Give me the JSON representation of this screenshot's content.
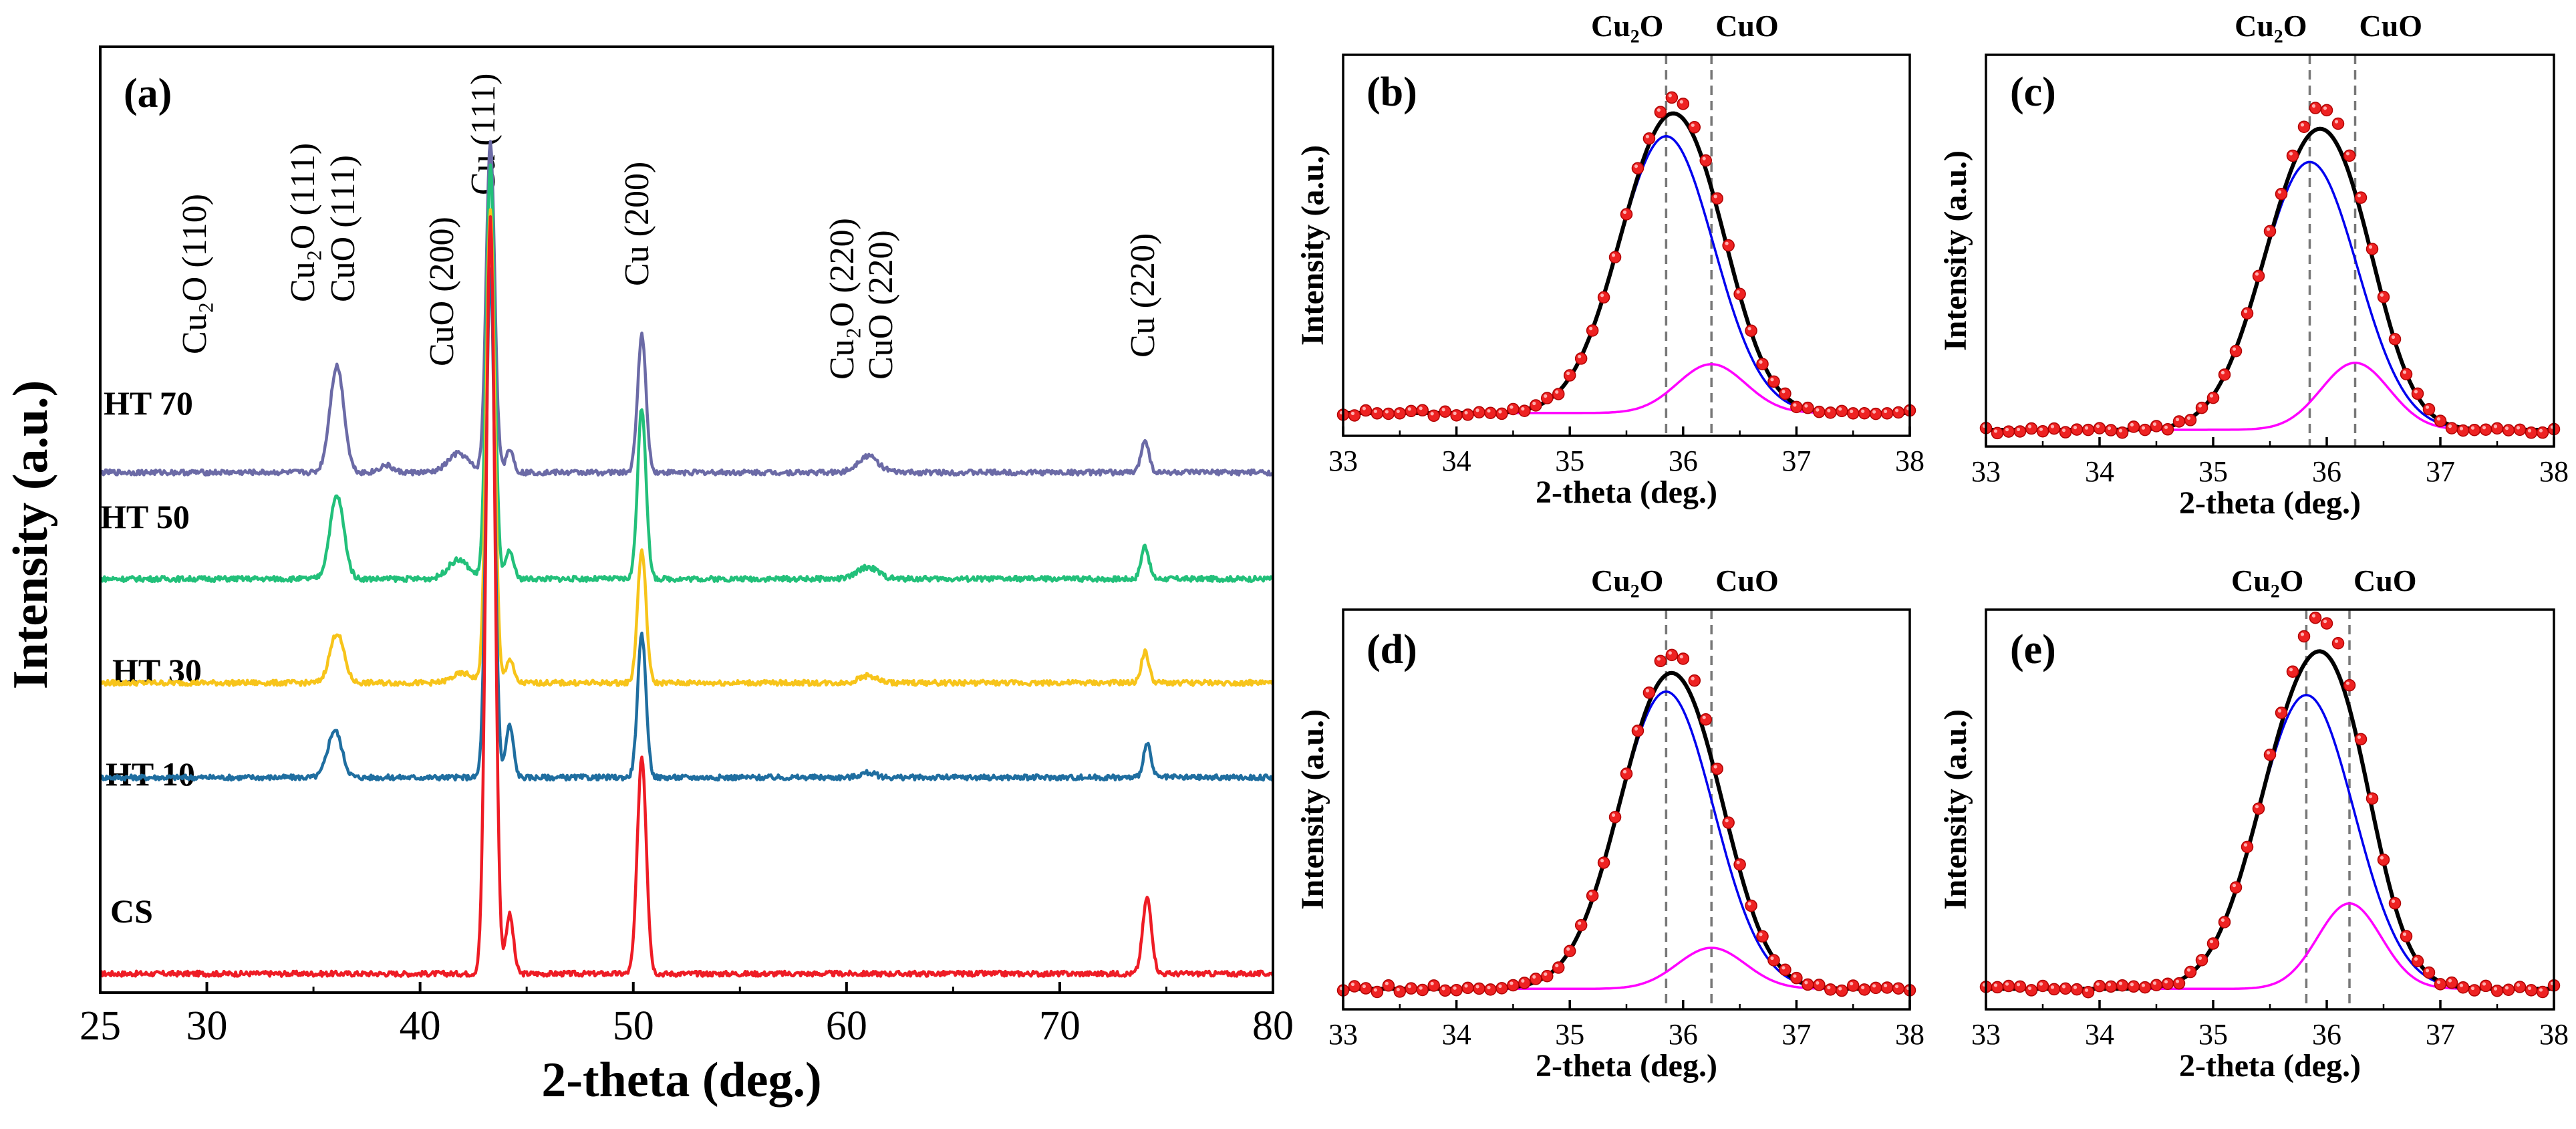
{
  "chart_data": [
    {
      "type": "line",
      "panel": "(a)",
      "xlabel": "2-theta (deg.)",
      "ylabel": "Intensity (a.u.)",
      "xlim": [
        25,
        80
      ],
      "xticks": [
        30,
        40,
        50,
        60,
        70,
        80
      ],
      "background_x": [
        25,
        80
      ],
      "series": [
        {
          "name": "CS",
          "color": "#ee1c25",
          "baseline": 0.03,
          "peaks": [
            {
              "x": 43.3,
              "h": 3.2,
              "w": 0.35
            },
            {
              "x": 44.2,
              "h": 0.25,
              "w": 0.3
            },
            {
              "x": 50.4,
              "h": 0.92,
              "w": 0.35
            },
            {
              "x": 74.1,
              "h": 0.32,
              "w": 0.35
            }
          ]
        },
        {
          "name": "HT 10",
          "color": "#1f6ea0",
          "baseline": 0.86,
          "peaks": [
            {
              "x": 36.0,
              "h": 0.2,
              "w": 0.55
            },
            {
              "x": 43.3,
              "h": 2.15,
              "w": 0.33
            },
            {
              "x": 44.2,
              "h": 0.22,
              "w": 0.3
            },
            {
              "x": 50.4,
              "h": 0.6,
              "w": 0.33
            },
            {
              "x": 61.0,
              "h": 0.02,
              "w": 0.6
            },
            {
              "x": 74.1,
              "h": 0.14,
              "w": 0.3
            }
          ]
        },
        {
          "name": "HT 30",
          "color": "#f7c41a",
          "baseline": 1.26,
          "peaks": [
            {
              "x": 36.1,
              "h": 0.21,
              "w": 0.55
            },
            {
              "x": 42.0,
              "h": 0.04,
              "w": 0.8
            },
            {
              "x": 43.3,
              "h": 2.0,
              "w": 0.33
            },
            {
              "x": 44.2,
              "h": 0.1,
              "w": 0.3
            },
            {
              "x": 50.4,
              "h": 0.56,
              "w": 0.33
            },
            {
              "x": 61.0,
              "h": 0.03,
              "w": 0.7
            },
            {
              "x": 74.0,
              "h": 0.13,
              "w": 0.3
            }
          ]
        },
        {
          "name": "HT 50",
          "color": "#22c07a",
          "baseline": 1.7,
          "peaks": [
            {
              "x": 36.1,
              "h": 0.35,
              "w": 0.55
            },
            {
              "x": 41.8,
              "h": 0.08,
              "w": 0.8
            },
            {
              "x": 43.3,
              "h": 1.75,
              "w": 0.33
            },
            {
              "x": 44.2,
              "h": 0.12,
              "w": 0.3
            },
            {
              "x": 50.4,
              "h": 0.72,
              "w": 0.33
            },
            {
              "x": 61.0,
              "h": 0.05,
              "w": 0.8
            },
            {
              "x": 74.0,
              "h": 0.14,
              "w": 0.3
            }
          ]
        },
        {
          "name": "HT 70",
          "color": "#6b6aa6",
          "baseline": 2.15,
          "peaks": [
            {
              "x": 36.1,
              "h": 0.45,
              "w": 0.55
            },
            {
              "x": 38.4,
              "h": 0.03,
              "w": 0.5
            },
            {
              "x": 41.8,
              "h": 0.08,
              "w": 0.8
            },
            {
              "x": 43.3,
              "h": 1.4,
              "w": 0.33
            },
            {
              "x": 44.2,
              "h": 0.1,
              "w": 0.3
            },
            {
              "x": 50.4,
              "h": 0.58,
              "w": 0.33
            },
            {
              "x": 61.0,
              "h": 0.07,
              "w": 0.8
            },
            {
              "x": 74.0,
              "h": 0.14,
              "w": 0.3
            }
          ]
        }
      ],
      "peak_labels": [
        "Cu₂O (110)",
        "Cu₂O (111)",
        "CuO (111)",
        "CuO (200)",
        "Cu (111)",
        "Cu (200)",
        "Cu₂O (220)",
        "CuO (220)",
        "Cu (220)"
      ]
    },
    {
      "type": "scatter",
      "panel": "(b)",
      "xlabel": "2-theta (deg.)",
      "ylabel": "Intensity (a.u.)",
      "xlim": [
        33,
        38
      ],
      "xticks": [
        33,
        34,
        35,
        36,
        37,
        38
      ],
      "baseline": 0.02,
      "cu2o_pos": 35.85,
      "cu2o_amp": 0.85,
      "cu2o_sigma": 0.42,
      "cuo_pos": 36.25,
      "cuo_amp": 0.15,
      "cuo_sigma": 0.3,
      "data_scale": 1.05,
      "ref_lines": [
        35.85,
        36.25
      ],
      "ref_labels": [
        "Cu₂O",
        "CuO"
      ]
    },
    {
      "type": "scatter",
      "panel": "(c)",
      "xlabel": "2-theta (deg.)",
      "ylabel": "Intensity (a.u.)",
      "xlim": [
        33,
        38
      ],
      "xticks": [
        33,
        34,
        35,
        36,
        37,
        38
      ],
      "baseline": 0.0,
      "cu2o_pos": 35.85,
      "cu2o_amp": 0.8,
      "cu2o_sigma": 0.42,
      "cuo_pos": 36.25,
      "cuo_amp": 0.2,
      "cuo_sigma": 0.3,
      "data_scale": 1.08,
      "ref_lines": [
        35.85,
        36.25
      ],
      "ref_labels": [
        "Cu₂O",
        "CuO"
      ]
    },
    {
      "type": "scatter",
      "panel": "(d)",
      "xlabel": "2-theta (deg.)",
      "ylabel": "Intensity (a.u.)",
      "xlim": [
        33,
        38
      ],
      "xticks": [
        33,
        34,
        35,
        36,
        37,
        38
      ],
      "baseline": 0.01,
      "cu2o_pos": 35.85,
      "cu2o_amp": 0.87,
      "cu2o_sigma": 0.42,
      "cuo_pos": 36.25,
      "cuo_amp": 0.12,
      "cuo_sigma": 0.3,
      "data_scale": 1.07,
      "ref_lines": [
        35.85,
        36.25
      ],
      "ref_labels": [
        "Cu₂O",
        "CuO"
      ]
    },
    {
      "type": "scatter",
      "panel": "(e)",
      "xlabel": "2-theta (deg.)",
      "ylabel": "Intensity (a.u.)",
      "xlim": [
        33,
        38
      ],
      "xticks": [
        33,
        34,
        35,
        36,
        37,
        38
      ],
      "baseline": 0.01,
      "cu2o_pos": 35.82,
      "cu2o_amp": 0.86,
      "cu2o_sigma": 0.42,
      "cuo_pos": 36.2,
      "cuo_amp": 0.25,
      "cuo_sigma": 0.28,
      "data_scale": 1.1,
      "ref_lines": [
        35.82,
        36.2
      ],
      "ref_labels": [
        "Cu₂O",
        "CuO"
      ]
    }
  ]
}
